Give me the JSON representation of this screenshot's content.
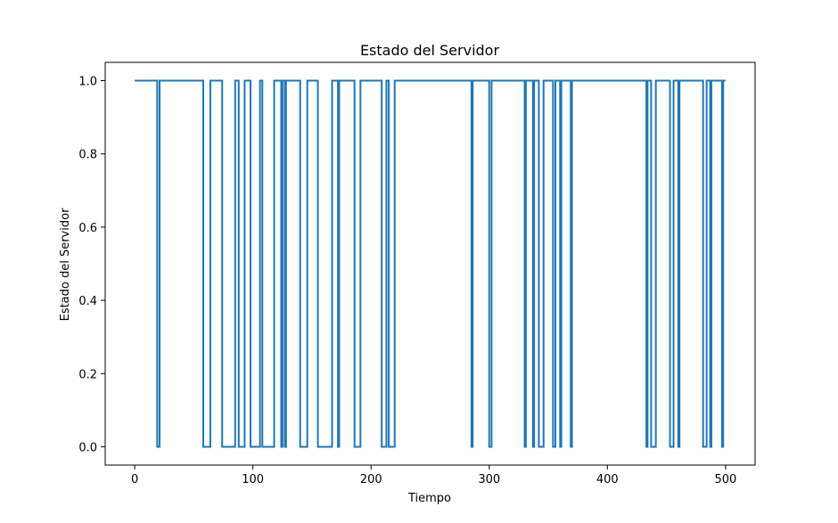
{
  "chart_data": {
    "type": "line",
    "title": "Estado del Servidor",
    "xlabel": "Tiempo",
    "ylabel": "Estado del Servidor",
    "xlim": [
      -25,
      525
    ],
    "ylim": [
      -0.05,
      1.05
    ],
    "grid": false,
    "color": "#1f77b4",
    "x_ticks": [
      0,
      100,
      200,
      300,
      400,
      500
    ],
    "x_tick_labels": [
      "0",
      "100",
      "200",
      "300",
      "400",
      "500"
    ],
    "y_ticks": [
      0.0,
      0.2,
      0.4,
      0.6,
      0.8,
      1.0
    ],
    "y_tick_labels": [
      "0.0",
      "0.2",
      "0.4",
      "0.6",
      "0.8",
      "1.0"
    ],
    "x_range": [
      0,
      500
    ],
    "series": [
      {
        "default_value": 1,
        "zero_intervals": [
          [
            19,
            21
          ],
          [
            58,
            64
          ],
          [
            74,
            85
          ],
          [
            88,
            93
          ],
          [
            98,
            106
          ],
          [
            108,
            118
          ],
          [
            124,
            125
          ],
          [
            127,
            128
          ],
          [
            140,
            146
          ],
          [
            155,
            167
          ],
          [
            172,
            173
          ],
          [
            186,
            191
          ],
          [
            209,
            213
          ],
          [
            215,
            220
          ],
          [
            285,
            286
          ],
          [
            300,
            302
          ],
          [
            330,
            331
          ],
          [
            337,
            338
          ],
          [
            342,
            346
          ],
          [
            354,
            356
          ],
          [
            360,
            361
          ],
          [
            369,
            370
          ],
          [
            433,
            434
          ],
          [
            437,
            441
          ],
          [
            453,
            456
          ],
          [
            460,
            461
          ],
          [
            481,
            484
          ],
          [
            487,
            488
          ],
          [
            497,
            498
          ]
        ]
      }
    ]
  }
}
